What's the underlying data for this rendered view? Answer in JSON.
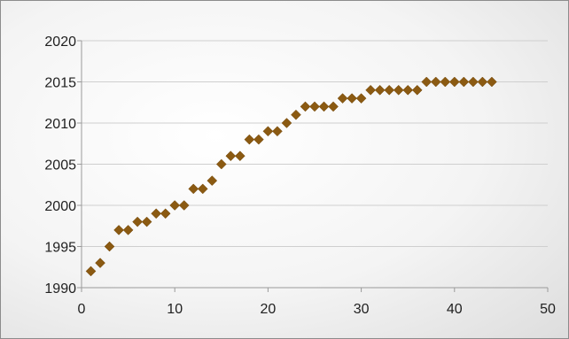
{
  "chart_data": {
    "type": "scatter",
    "title": "",
    "xlabel": "",
    "ylabel": "",
    "xlim": [
      0,
      50
    ],
    "ylim": [
      1990,
      2020
    ],
    "x_ticks": [
      0,
      10,
      20,
      30,
      40,
      50
    ],
    "y_ticks": [
      1990,
      1995,
      2000,
      2005,
      2010,
      2015,
      2020
    ],
    "grid": {
      "horizontal": true,
      "vertical": false
    },
    "legend": "none",
    "marker": "diamond",
    "series": [
      {
        "color": "#8b5a12",
        "points": [
          [
            1,
            1992
          ],
          [
            2,
            1993
          ],
          [
            3,
            1995
          ],
          [
            4,
            1997
          ],
          [
            5,
            1997
          ],
          [
            6,
            1998
          ],
          [
            7,
            1998
          ],
          [
            8,
            1999
          ],
          [
            9,
            1999
          ],
          [
            10,
            2000
          ],
          [
            11,
            2000
          ],
          [
            12,
            2002
          ],
          [
            13,
            2002
          ],
          [
            14,
            2003
          ],
          [
            15,
            2005
          ],
          [
            16,
            2006
          ],
          [
            17,
            2006
          ],
          [
            18,
            2008
          ],
          [
            19,
            2008
          ],
          [
            20,
            2009
          ],
          [
            21,
            2009
          ],
          [
            22,
            2010
          ],
          [
            23,
            2011
          ],
          [
            24,
            2012
          ],
          [
            25,
            2012
          ],
          [
            26,
            2012
          ],
          [
            27,
            2012
          ],
          [
            28,
            2013
          ],
          [
            29,
            2013
          ],
          [
            30,
            2013
          ],
          [
            31,
            2014
          ],
          [
            32,
            2014
          ],
          [
            33,
            2014
          ],
          [
            34,
            2014
          ],
          [
            35,
            2014
          ],
          [
            36,
            2014
          ],
          [
            37,
            2015
          ],
          [
            38,
            2015
          ],
          [
            39,
            2015
          ],
          [
            40,
            2015
          ],
          [
            41,
            2015
          ],
          [
            42,
            2015
          ],
          [
            43,
            2015
          ],
          [
            44,
            2015
          ]
        ]
      }
    ]
  },
  "colors": {
    "background_light": "#ffffff",
    "background_dark": "#e4e4e4",
    "border": "#8c8c8c",
    "marker": "#8b5a12"
  }
}
